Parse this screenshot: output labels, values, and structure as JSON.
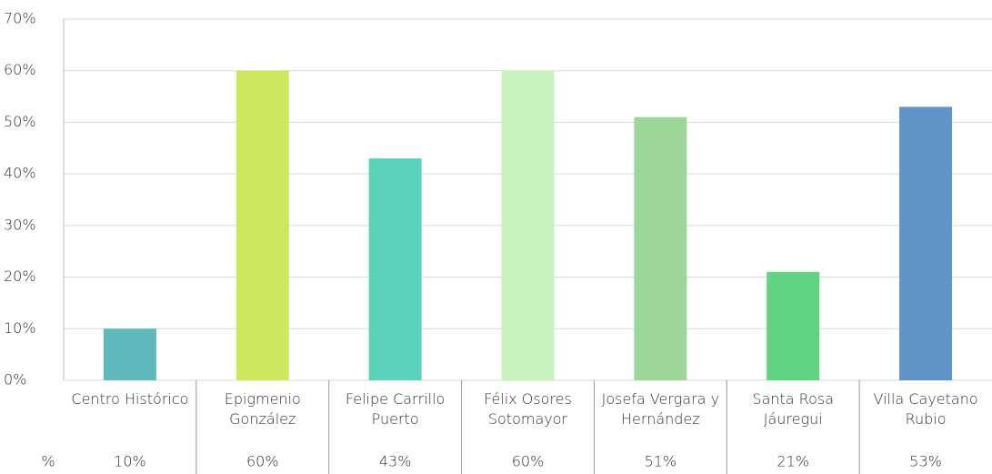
{
  "chart_data": {
    "type": "bar",
    "categories": [
      "Centro Histórico",
      "Epigmenio González",
      "Felipe Carrillo Puerto",
      "Félix Osores Sotomayor",
      "Josefa Vergara y Hernández",
      "Santa Rosa Jáuregui",
      "Villa Cayetano Rubio"
    ],
    "values": [
      10,
      60,
      43,
      60,
      51,
      21,
      53
    ],
    "value_labels": [
      "10%",
      "60%",
      "43%",
      "60%",
      "51%",
      "21%",
      "53%"
    ],
    "colors": [
      "#5fb8b9",
      "#cbe85e",
      "#5bd3bb",
      "#c8f3bd",
      "#9dd797",
      "#62d380",
      "#6193c9"
    ],
    "table_row_label": "%",
    "ylim": [
      0,
      70
    ],
    "yticks": [
      {
        "value": 0,
        "label": "0%"
      },
      {
        "value": 10,
        "label": "10%"
      },
      {
        "value": 20,
        "label": "20%"
      },
      {
        "value": 30,
        "label": "30%"
      },
      {
        "value": 40,
        "label": "40%"
      },
      {
        "value": 50,
        "label": "50%"
      },
      {
        "value": 60,
        "label": "60%"
      },
      {
        "value": 70,
        "label": "70%"
      }
    ],
    "grid": true
  }
}
